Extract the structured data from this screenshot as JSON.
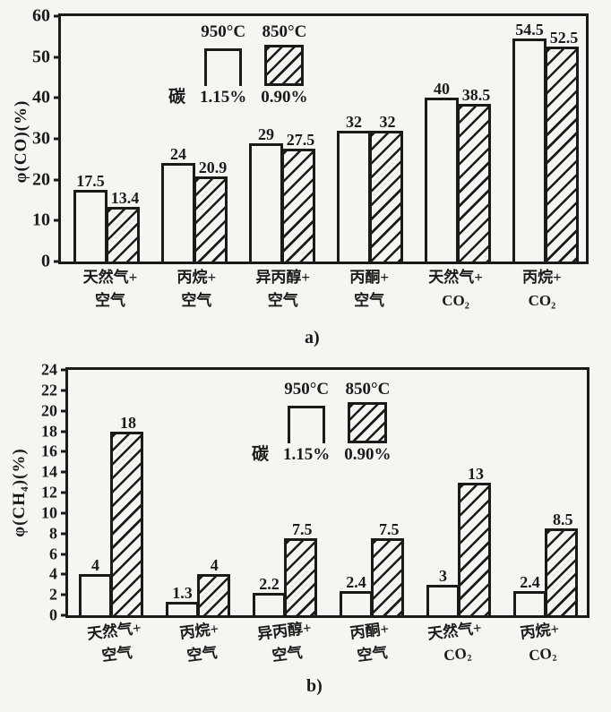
{
  "page": {
    "background_color": "#f6f5f1",
    "ink_color": "#1a1a1a"
  },
  "chart_data": [
    {
      "type": "bar",
      "panel_label": "a)",
      "ylabel": "φ(CO)(%)",
      "ylim": [
        0,
        60
      ],
      "yticks": [
        0,
        10,
        20,
        30,
        40,
        50,
        60
      ],
      "grid": false,
      "legend_position": "top-left-inside",
      "legend": {
        "series1_label": "950°C",
        "series2_label": "850°C",
        "carbon_label": "碳",
        "carbon1": "1.15%",
        "carbon2": "0.90%"
      },
      "categories": [
        [
          "天然气+",
          "空气"
        ],
        [
          "丙烷+",
          "空气"
        ],
        [
          "异丙醇+",
          "空气"
        ],
        [
          "丙酮+",
          "空气"
        ],
        [
          "天然气+",
          "CO₂"
        ],
        [
          "丙烷+",
          "CO₂"
        ]
      ],
      "series": [
        {
          "name": "950°C 碳1.15%",
          "style": "open",
          "values": [
            17.5,
            24,
            29,
            32,
            40,
            54.5
          ]
        },
        {
          "name": "850°C 碳0.90%",
          "style": "hatched",
          "values": [
            13.4,
            20.9,
            27.5,
            32,
            38.5,
            52.5
          ]
        }
      ]
    },
    {
      "type": "bar",
      "panel_label": "b)",
      "ylabel": "φ(CH₄)(%)",
      "ylim": [
        0,
        24
      ],
      "yticks": [
        0,
        2,
        4,
        6,
        8,
        10,
        12,
        14,
        16,
        18,
        20,
        22,
        24
      ],
      "grid": false,
      "legend_position": "top-center-inside",
      "legend": {
        "series1_label": "950°C",
        "series2_label": "850°C",
        "carbon_label": "碳",
        "carbon1": "1.15%",
        "carbon2": "0.90%"
      },
      "categories": [
        [
          "天然气+",
          "空气"
        ],
        [
          "丙烷+",
          "空气"
        ],
        [
          "异丙醇+",
          "空气"
        ],
        [
          "丙酮+",
          "空气"
        ],
        [
          "天然气+",
          "CO₂"
        ],
        [
          "丙烷+",
          "CO₂"
        ]
      ],
      "series": [
        {
          "name": "950°C 碳1.15%",
          "style": "open",
          "values": [
            4,
            1.3,
            2.2,
            2.4,
            3,
            2.4
          ]
        },
        {
          "name": "850°C 碳0.90%",
          "style": "hatched",
          "values": [
            18,
            4,
            7.5,
            7.5,
            13,
            8.5
          ]
        }
      ]
    }
  ]
}
